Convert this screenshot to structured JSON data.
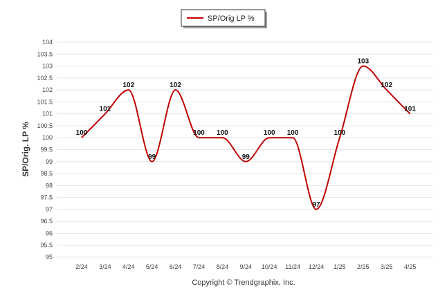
{
  "chart_data": {
    "type": "line",
    "categories": [
      "2/24",
      "3/24",
      "4/24",
      "5/24",
      "6/24",
      "7/24",
      "8/24",
      "9/24",
      "10/24",
      "11/24",
      "12/24",
      "1/25",
      "2/25",
      "3/25",
      "4/25"
    ],
    "series": [
      {
        "name": "SP/Orig LP %",
        "values": [
          100,
          101,
          102,
          99,
          102,
          100,
          100,
          99,
          100,
          100,
          97,
          100,
          103,
          102,
          101
        ],
        "color": "#c00000"
      }
    ],
    "data_labels": [
      "100",
      "101",
      "102",
      "99",
      "102",
      "100",
      "100",
      "99",
      "100",
      "100",
      "97",
      "100",
      "103",
      "102",
      "101"
    ],
    "y_ticks": [
      "95",
      "95.5",
      "96",
      "96.5",
      "97",
      "97.5",
      "98",
      "98.5",
      "99",
      "99.5",
      "100",
      "100.5",
      "101",
      "101.5",
      "102",
      "102.5",
      "103",
      "103.5",
      "104"
    ],
    "ylabel": "SP/Orig. LP %",
    "xlabel": "",
    "ylim": [
      95,
      104
    ],
    "grid": true,
    "legend_position": "top-center"
  },
  "footer": {
    "text": "Copyright © Trendgraphix, Inc."
  }
}
